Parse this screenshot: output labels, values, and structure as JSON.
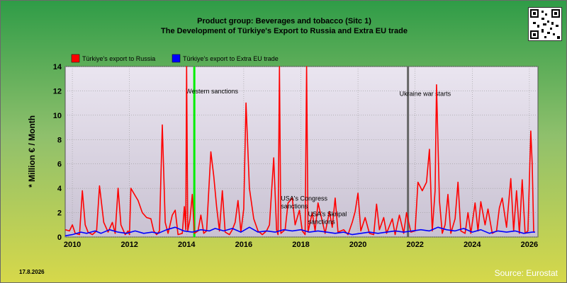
{
  "header": {
    "title_line1": "Product group: Beverages and tobacco (Sitc 1)",
    "title_line2": "The Development of Türkiye's Export to  Russia and Extra EU trade"
  },
  "footer": {
    "date": "17.8.2026",
    "source": "Source: Eurostat"
  },
  "chart_data": {
    "type": "line",
    "ylabel": "* Million € / Month",
    "ylim": [
      0,
      14
    ],
    "xlim": [
      2009.75,
      2026.3
    ],
    "yticks": [
      0,
      2,
      4,
      6,
      8,
      10,
      12,
      14
    ],
    "xticks": [
      2010,
      2012,
      2014,
      2016,
      2018,
      2020,
      2022,
      2024,
      2026
    ],
    "grid": true,
    "legend_position": "top-left",
    "series": [
      {
        "name": "Türkiye's export to Russia",
        "color": "#ff0000",
        "points": [
          [
            2009.75,
            0.6
          ],
          [
            2009.9,
            0.5
          ],
          [
            2010.0,
            1.0
          ],
          [
            2010.1,
            0.3
          ],
          [
            2010.25,
            0.2
          ],
          [
            2010.35,
            3.8
          ],
          [
            2010.45,
            1.0
          ],
          [
            2010.55,
            0.4
          ],
          [
            2010.7,
            0.2
          ],
          [
            2010.85,
            0.5
          ],
          [
            2010.95,
            4.2
          ],
          [
            2011.1,
            1.2
          ],
          [
            2011.25,
            0.4
          ],
          [
            2011.4,
            1.2
          ],
          [
            2011.5,
            0.3
          ],
          [
            2011.6,
            4.0
          ],
          [
            2011.7,
            1.0
          ],
          [
            2011.85,
            0.2
          ],
          [
            2011.95,
            0.5
          ],
          [
            2012.0,
            0.2
          ],
          [
            2012.05,
            4.0
          ],
          [
            2012.2,
            3.4
          ],
          [
            2012.3,
            3.0
          ],
          [
            2012.45,
            2.0
          ],
          [
            2012.6,
            1.6
          ],
          [
            2012.75,
            1.5
          ],
          [
            2012.85,
            0.5
          ],
          [
            2012.95,
            0.2
          ],
          [
            2013.05,
            0.5
          ],
          [
            2013.15,
            9.2
          ],
          [
            2013.25,
            1.2
          ],
          [
            2013.35,
            0.3
          ],
          [
            2013.5,
            1.8
          ],
          [
            2013.6,
            2.2
          ],
          [
            2013.7,
            0.2
          ],
          [
            2013.85,
            0.3
          ],
          [
            2013.92,
            2.5
          ],
          [
            2013.97,
            0.6
          ],
          [
            2014.0,
            14
          ],
          [
            2014.04,
            0.5
          ],
          [
            2014.12,
            1.5
          ],
          [
            2014.2,
            3.5
          ],
          [
            2014.27,
            0.3
          ],
          [
            2014.4,
            0.5
          ],
          [
            2014.5,
            1.8
          ],
          [
            2014.6,
            0.3
          ],
          [
            2014.7,
            0.5
          ],
          [
            2014.85,
            7.0
          ],
          [
            2014.95,
            5.0
          ],
          [
            2015.05,
            2.5
          ],
          [
            2015.15,
            0.5
          ],
          [
            2015.25,
            3.8
          ],
          [
            2015.35,
            0.4
          ],
          [
            2015.5,
            0.2
          ],
          [
            2015.6,
            0.6
          ],
          [
            2015.7,
            1.2
          ],
          [
            2015.8,
            3.0
          ],
          [
            2015.9,
            0.4
          ],
          [
            2016.0,
            2.3
          ],
          [
            2016.08,
            11.0
          ],
          [
            2016.2,
            4.0
          ],
          [
            2016.35,
            1.5
          ],
          [
            2016.5,
            0.5
          ],
          [
            2016.65,
            0.2
          ],
          [
            2016.8,
            0.5
          ],
          [
            2016.9,
            1.0
          ],
          [
            2017.05,
            6.5
          ],
          [
            2017.15,
            0.6
          ],
          [
            2017.2,
            0.2
          ],
          [
            2017.25,
            14
          ],
          [
            2017.3,
            0.3
          ],
          [
            2017.45,
            0.6
          ],
          [
            2017.55,
            2.8
          ],
          [
            2017.7,
            3.2
          ],
          [
            2017.8,
            1.0
          ],
          [
            2017.95,
            2.2
          ],
          [
            2018.05,
            0.5
          ],
          [
            2018.15,
            0.2
          ],
          [
            2018.2,
            14
          ],
          [
            2018.25,
            0.4
          ],
          [
            2018.4,
            2.0
          ],
          [
            2018.5,
            0.5
          ],
          [
            2018.6,
            2.8
          ],
          [
            2018.75,
            1.3
          ],
          [
            2018.85,
            0.3
          ],
          [
            2019.0,
            2.1
          ],
          [
            2019.1,
            0.8
          ],
          [
            2019.2,
            3.2
          ],
          [
            2019.3,
            0.4
          ],
          [
            2019.5,
            0.6
          ],
          [
            2019.65,
            0.2
          ],
          [
            2019.8,
            1.2
          ],
          [
            2019.9,
            2.1
          ],
          [
            2020.0,
            3.6
          ],
          [
            2020.1,
            0.5
          ],
          [
            2020.25,
            1.6
          ],
          [
            2020.4,
            0.3
          ],
          [
            2020.55,
            0.2
          ],
          [
            2020.65,
            2.7
          ],
          [
            2020.75,
            0.6
          ],
          [
            2020.9,
            1.6
          ],
          [
            2021.0,
            0.3
          ],
          [
            2021.2,
            1.5
          ],
          [
            2021.3,
            0.2
          ],
          [
            2021.45,
            1.8
          ],
          [
            2021.6,
            0.3
          ],
          [
            2021.7,
            2.0
          ],
          [
            2021.85,
            0.4
          ],
          [
            2022.0,
            0.5
          ],
          [
            2022.1,
            4.5
          ],
          [
            2022.25,
            3.8
          ],
          [
            2022.4,
            4.5
          ],
          [
            2022.5,
            7.2
          ],
          [
            2022.6,
            0.5
          ],
          [
            2022.7,
            3.8
          ],
          [
            2022.75,
            12.5
          ],
          [
            2022.85,
            3.0
          ],
          [
            2022.95,
            0.3
          ],
          [
            2023.05,
            1.0
          ],
          [
            2023.15,
            3.5
          ],
          [
            2023.25,
            0.3
          ],
          [
            2023.4,
            1.5
          ],
          [
            2023.5,
            4.5
          ],
          [
            2023.6,
            0.5
          ],
          [
            2023.75,
            0.3
          ],
          [
            2023.85,
            2.0
          ],
          [
            2023.95,
            0.3
          ],
          [
            2024.1,
            2.8
          ],
          [
            2024.2,
            0.5
          ],
          [
            2024.3,
            2.9
          ],
          [
            2024.45,
            1.0
          ],
          [
            2024.55,
            2.3
          ],
          [
            2024.7,
            0.3
          ],
          [
            2024.85,
            0.5
          ],
          [
            2024.95,
            2.4
          ],
          [
            2025.05,
            3.2
          ],
          [
            2025.2,
            0.8
          ],
          [
            2025.35,
            4.8
          ],
          [
            2025.45,
            0.5
          ],
          [
            2025.55,
            3.8
          ],
          [
            2025.65,
            0.3
          ],
          [
            2025.75,
            4.7
          ],
          [
            2025.85,
            0.3
          ],
          [
            2025.95,
            0.5
          ],
          [
            2026.05,
            8.7
          ],
          [
            2026.1,
            6.0
          ],
          [
            2026.15,
            0.4
          ]
        ]
      },
      {
        "name": "Türkiye's export to Extra EU trade",
        "color": "#0000ff",
        "points": [
          [
            2009.75,
            0.1
          ],
          [
            2010.0,
            0.2
          ],
          [
            2010.3,
            0.4
          ],
          [
            2010.5,
            0.3
          ],
          [
            2010.8,
            0.5
          ],
          [
            2011.0,
            0.3
          ],
          [
            2011.3,
            0.6
          ],
          [
            2011.6,
            0.4
          ],
          [
            2011.9,
            0.3
          ],
          [
            2012.2,
            0.5
          ],
          [
            2012.5,
            0.3
          ],
          [
            2012.8,
            0.4
          ],
          [
            2013.0,
            0.3
          ],
          [
            2013.3,
            0.6
          ],
          [
            2013.6,
            0.8
          ],
          [
            2013.9,
            0.5
          ],
          [
            2014.2,
            0.4
          ],
          [
            2014.5,
            0.6
          ],
          [
            2014.8,
            0.5
          ],
          [
            2015.0,
            0.7
          ],
          [
            2015.3,
            0.5
          ],
          [
            2015.6,
            0.7
          ],
          [
            2015.9,
            0.4
          ],
          [
            2016.2,
            0.8
          ],
          [
            2016.5,
            0.4
          ],
          [
            2016.8,
            0.5
          ],
          [
            2017.1,
            0.4
          ],
          [
            2017.4,
            0.6
          ],
          [
            2017.7,
            0.5
          ],
          [
            2018.0,
            0.6
          ],
          [
            2018.3,
            0.4
          ],
          [
            2018.6,
            0.5
          ],
          [
            2018.9,
            0.4
          ],
          [
            2019.2,
            0.3
          ],
          [
            2019.5,
            0.4
          ],
          [
            2019.8,
            0.2
          ],
          [
            2020.1,
            0.3
          ],
          [
            2020.4,
            0.4
          ],
          [
            2020.7,
            0.3
          ],
          [
            2021.0,
            0.4
          ],
          [
            2021.3,
            0.5
          ],
          [
            2021.6,
            0.4
          ],
          [
            2021.9,
            0.5
          ],
          [
            2022.2,
            0.6
          ],
          [
            2022.5,
            0.5
          ],
          [
            2022.8,
            0.8
          ],
          [
            2023.1,
            0.6
          ],
          [
            2023.4,
            0.5
          ],
          [
            2023.7,
            0.7
          ],
          [
            2024.0,
            0.4
          ],
          [
            2024.3,
            0.6
          ],
          [
            2024.6,
            0.3
          ],
          [
            2024.9,
            0.5
          ],
          [
            2025.2,
            0.4
          ],
          [
            2025.5,
            0.5
          ],
          [
            2025.8,
            0.3
          ],
          [
            2026.1,
            0.4
          ],
          [
            2026.2,
            0.4
          ]
        ]
      }
    ],
    "events": [
      {
        "x": 2014.27,
        "color": "#00ee00",
        "label": "Western sanctions",
        "label_y": 11.8
      },
      {
        "x": 2021.75,
        "color": "#666666",
        "label": "Ukraine war starts",
        "label_y": 11.6
      }
    ],
    "annotations": [
      {
        "x": 2017.3,
        "y": 3.0,
        "text": "USA's Congress sanctions"
      },
      {
        "x": 2018.25,
        "y": 1.7,
        "text": "USA's Skripal sanctions"
      }
    ]
  }
}
